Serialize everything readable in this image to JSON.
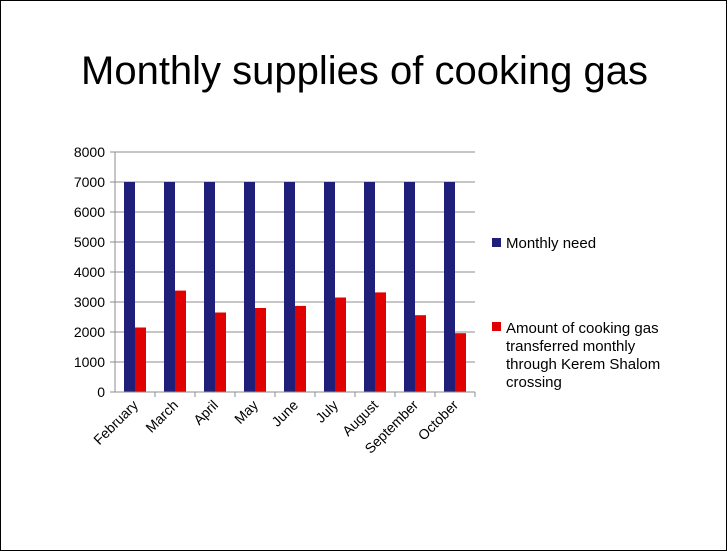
{
  "chart_data": {
    "type": "bar",
    "title": "Monthly supplies of cooking gas",
    "categories": [
      "February",
      "March",
      "April",
      "May",
      "June",
      "July",
      "August",
      "September",
      "October"
    ],
    "series": [
      {
        "name": "Monthly need",
        "color": "#1f1f7a",
        "values": [
          7000,
          7000,
          7000,
          7000,
          7000,
          7000,
          7000,
          7000,
          7000
        ]
      },
      {
        "name_lines": [
          "Amount of cooking gas",
          "transferred monthly",
          "through Kerem Shalom",
          "crossing"
        ],
        "color": "#e00000",
        "values": [
          2150,
          3380,
          2650,
          2800,
          2870,
          3150,
          3320,
          2560,
          1960
        ]
      }
    ],
    "ylim": [
      0,
      8000
    ],
    "yticks": [
      "0",
      "1000",
      "2000",
      "3000",
      "4000",
      "5000",
      "6000",
      "7000",
      "8000"
    ],
    "grid": true,
    "legend_position": "right"
  }
}
